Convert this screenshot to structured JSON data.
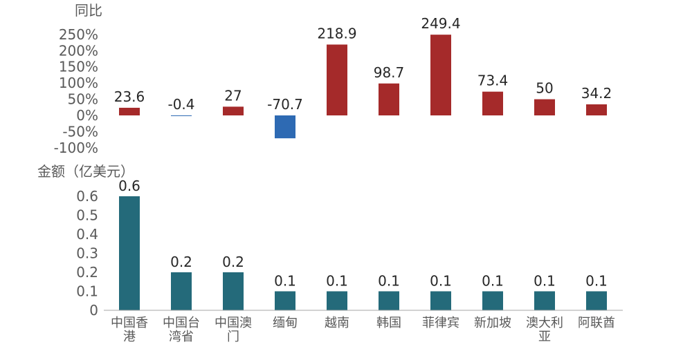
{
  "chart_data": [
    {
      "type": "bar",
      "ylabel": "同比",
      "categories": [
        "中国香港",
        "中国台湾省",
        "中国澳门",
        "缅甸",
        "越南",
        "韩国",
        "菲律宾",
        "新加坡",
        "澳大利亚",
        "阿联酋"
      ],
      "values": [
        23.6,
        -0.4,
        27,
        -70.7,
        218.9,
        98.7,
        249.4,
        73.4,
        50,
        34.2
      ],
      "data_labels": [
        "23.6",
        "-0.4",
        "27",
        "-70.7",
        "218.9",
        "98.7",
        "249.4",
        "73.4",
        "50",
        "34.2"
      ],
      "ylim": [
        -100,
        250
      ],
      "yticks": [
        "250%",
        "200%",
        "150%",
        "100%",
        "50%",
        "0%",
        "-50%",
        "-100%"
      ],
      "ytick_values": [
        250,
        200,
        150,
        100,
        50,
        0,
        -50,
        -100
      ],
      "grid": false,
      "colors": {
        "positive": "#A52A2A",
        "negative": "#2E6AB3"
      }
    },
    {
      "type": "bar",
      "ylabel": "金额（亿美元）",
      "categories": [
        "中国香港",
        "中国台湾省",
        "中国澳门",
        "缅甸",
        "越南",
        "韩国",
        "菲律宾",
        "新加坡",
        "澳大利亚",
        "阿联酋"
      ],
      "category_lines": [
        [
          "中国香",
          "港"
        ],
        [
          "中国台",
          "湾省"
        ],
        [
          "中国澳",
          "门"
        ],
        [
          "缅甸"
        ],
        [
          "越南"
        ],
        [
          "韩国"
        ],
        [
          "菲律宾"
        ],
        [
          "新加坡"
        ],
        [
          "澳大利",
          "亚"
        ],
        [
          "阿联酋"
        ]
      ],
      "values": [
        0.6,
        0.2,
        0.2,
        0.1,
        0.1,
        0.1,
        0.1,
        0.1,
        0.1,
        0.1
      ],
      "data_labels": [
        "0.6",
        "0.2",
        "0.2",
        "0.1",
        "0.1",
        "0.1",
        "0.1",
        "0.1",
        "0.1",
        "0.1"
      ],
      "ylim": [
        0,
        0.6
      ],
      "yticks": [
        "0.6",
        "0.5",
        "0.4",
        "0.3",
        "0.2",
        "0.1",
        "0"
      ],
      "ytick_values": [
        0.6,
        0.5,
        0.4,
        0.3,
        0.2,
        0.1,
        0
      ],
      "grid": false,
      "colors": {
        "bar": "#246A7A",
        "axis": "#A6A6A6"
      }
    }
  ]
}
